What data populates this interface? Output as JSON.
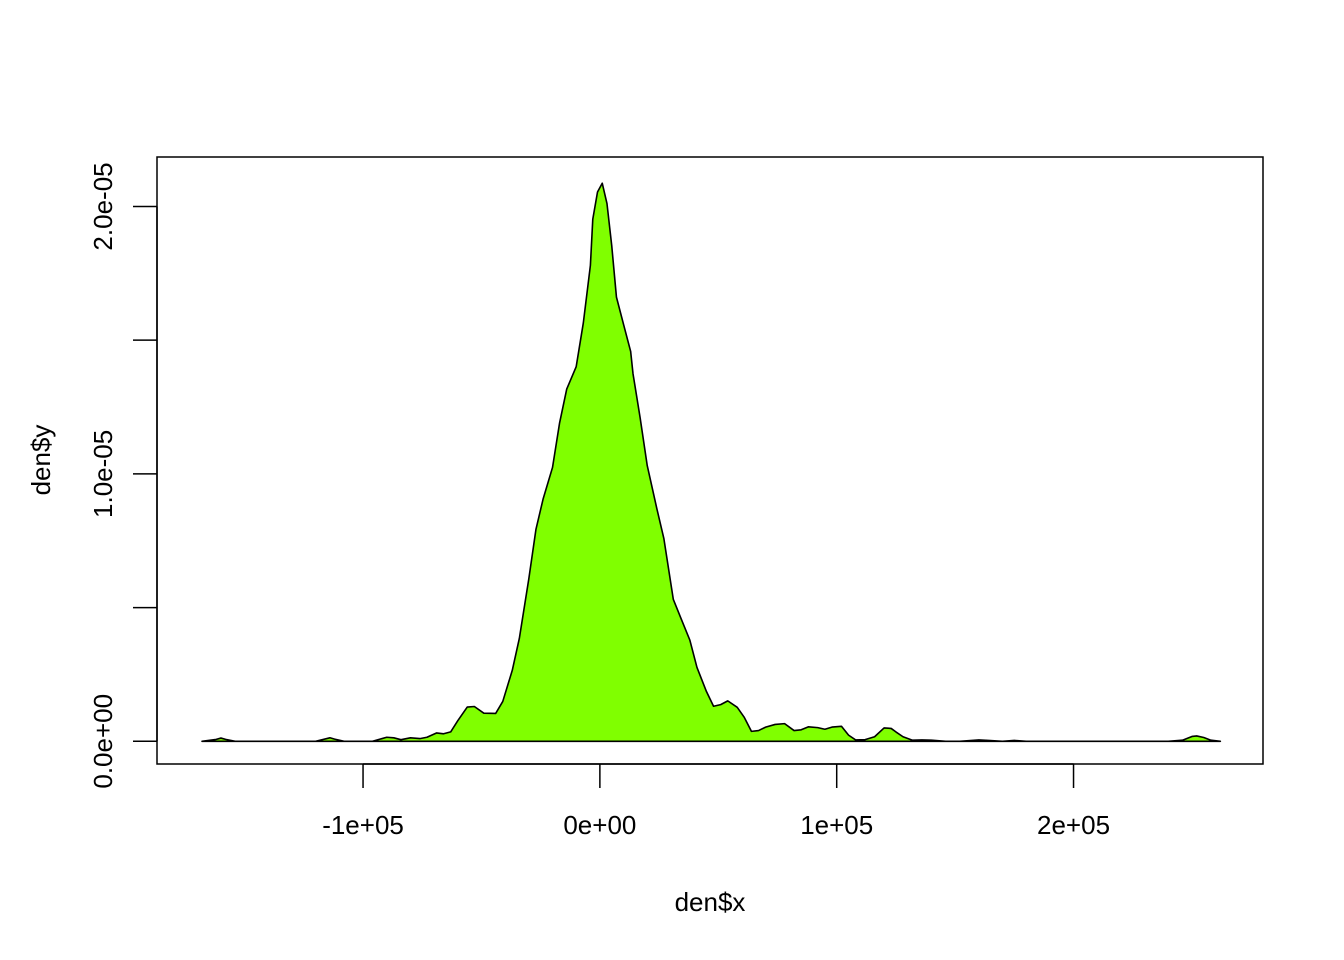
{
  "colors": {
    "fill": "#80FF00",
    "stroke": "#000000",
    "background": "#FFFFFF"
  },
  "chart_data": {
    "type": "area",
    "title": "",
    "xlabel": "den$x",
    "ylabel": "den$y",
    "xlim": [
      -187000,
      280000
    ],
    "ylim": [
      -8.5e-07,
      2.185e-05
    ],
    "grid": false,
    "legend": "none",
    "x_ticks": [
      {
        "value": -100000,
        "label": "-1e+05"
      },
      {
        "value": 0,
        "label": "0e+00"
      },
      {
        "value": 100000,
        "label": "1e+05"
      },
      {
        "value": 200000,
        "label": "2e+05"
      }
    ],
    "y_ticks": [
      {
        "value": 0,
        "label": "0.0e+00"
      },
      {
        "value": 5e-06,
        "label": ""
      },
      {
        "value": 1e-05,
        "label": "1.0e-05"
      },
      {
        "value": 1.5e-05,
        "label": ""
      },
      {
        "value": 2e-05,
        "label": "2.0e-05"
      }
    ],
    "series": [
      {
        "x": [
          -168000,
          -162000,
          -160000,
          -158000,
          -154000,
          -140000,
          -120000,
          -114000,
          -112000,
          -108000,
          -96000,
          -90000,
          -87000,
          -84000,
          -80000,
          -76000,
          -73000,
          -69000,
          -66000,
          -63000,
          -60000,
          -56000,
          -53000,
          -49000,
          -44000,
          -41000,
          -37000,
          -34000,
          -30000,
          -27000,
          -24000,
          -20000,
          -17000,
          -14000,
          -10000,
          -7000,
          -4000,
          -3000,
          -1000,
          1000,
          3000,
          5000,
          7000,
          10000,
          13000,
          14000,
          17000,
          20000,
          24000,
          27000,
          31000,
          34000,
          38000,
          41000,
          45000,
          48000,
          51000,
          54000,
          58000,
          61000,
          64000,
          67000,
          70000,
          74000,
          78000,
          82000,
          85000,
          88000,
          92000,
          95000,
          98000,
          102000,
          105000,
          108000,
          112000,
          116000,
          120000,
          123000,
          125000,
          128000,
          132000,
          136000,
          140000,
          146000,
          152000,
          160000,
          164000,
          170000,
          175000,
          180000,
          190000,
          200000,
          220000,
          240000,
          246000,
          250000,
          252000,
          255000,
          258000,
          262000
        ],
        "y": [
          0,
          7e-08,
          1.2e-07,
          7e-08,
          0,
          0,
          0,
          1.3e-07,
          8e-08,
          0,
          0,
          1.5e-07,
          1.3e-07,
          6e-08,
          1.3e-07,
          1e-07,
          1.5e-07,
          3.1e-07,
          2.8e-07,
          3.5e-07,
          7.7e-07,
          1.28e-06,
          1.3e-06,
          1.05e-06,
          1.04e-06,
          1.49e-06,
          2.65e-06,
          3.85e-06,
          6.08e-06,
          7.92e-06,
          9.05e-06,
          1.024e-05,
          1.191e-05,
          1.317e-05,
          1.401e-05,
          1.564e-05,
          1.78e-05,
          1.952e-05,
          2.054e-05,
          2.087e-05,
          2.011e-05,
          1.854e-05,
          1.661e-05,
          1.559e-05,
          1.458e-05,
          1.374e-05,
          1.21e-05,
          1.031e-05,
          8.72e-06,
          7.59e-06,
          5.31e-06,
          4.65e-06,
          3.78e-06,
          2.76e-06,
          1.86e-06,
          1.31e-06,
          1.37e-06,
          1.51e-06,
          1.27e-06,
          8.9e-07,
          3.7e-07,
          4e-07,
          5.3e-07,
          6.3e-07,
          6.6e-07,
          4e-07,
          4.3e-07,
          5.4e-07,
          5.1e-07,
          4.5e-07,
          5.3e-07,
          5.6e-07,
          2.3e-07,
          5e-08,
          6e-08,
          1.7e-07,
          5e-07,
          4.8e-07,
          3.5e-07,
          1.7e-07,
          4e-08,
          5e-08,
          4e-08,
          0,
          0,
          5e-08,
          3e-08,
          0,
          3e-08,
          0,
          0,
          0,
          0,
          0,
          4e-08,
          1.8e-07,
          2e-07,
          1.4e-07,
          4e-08,
          0
        ]
      }
    ]
  }
}
